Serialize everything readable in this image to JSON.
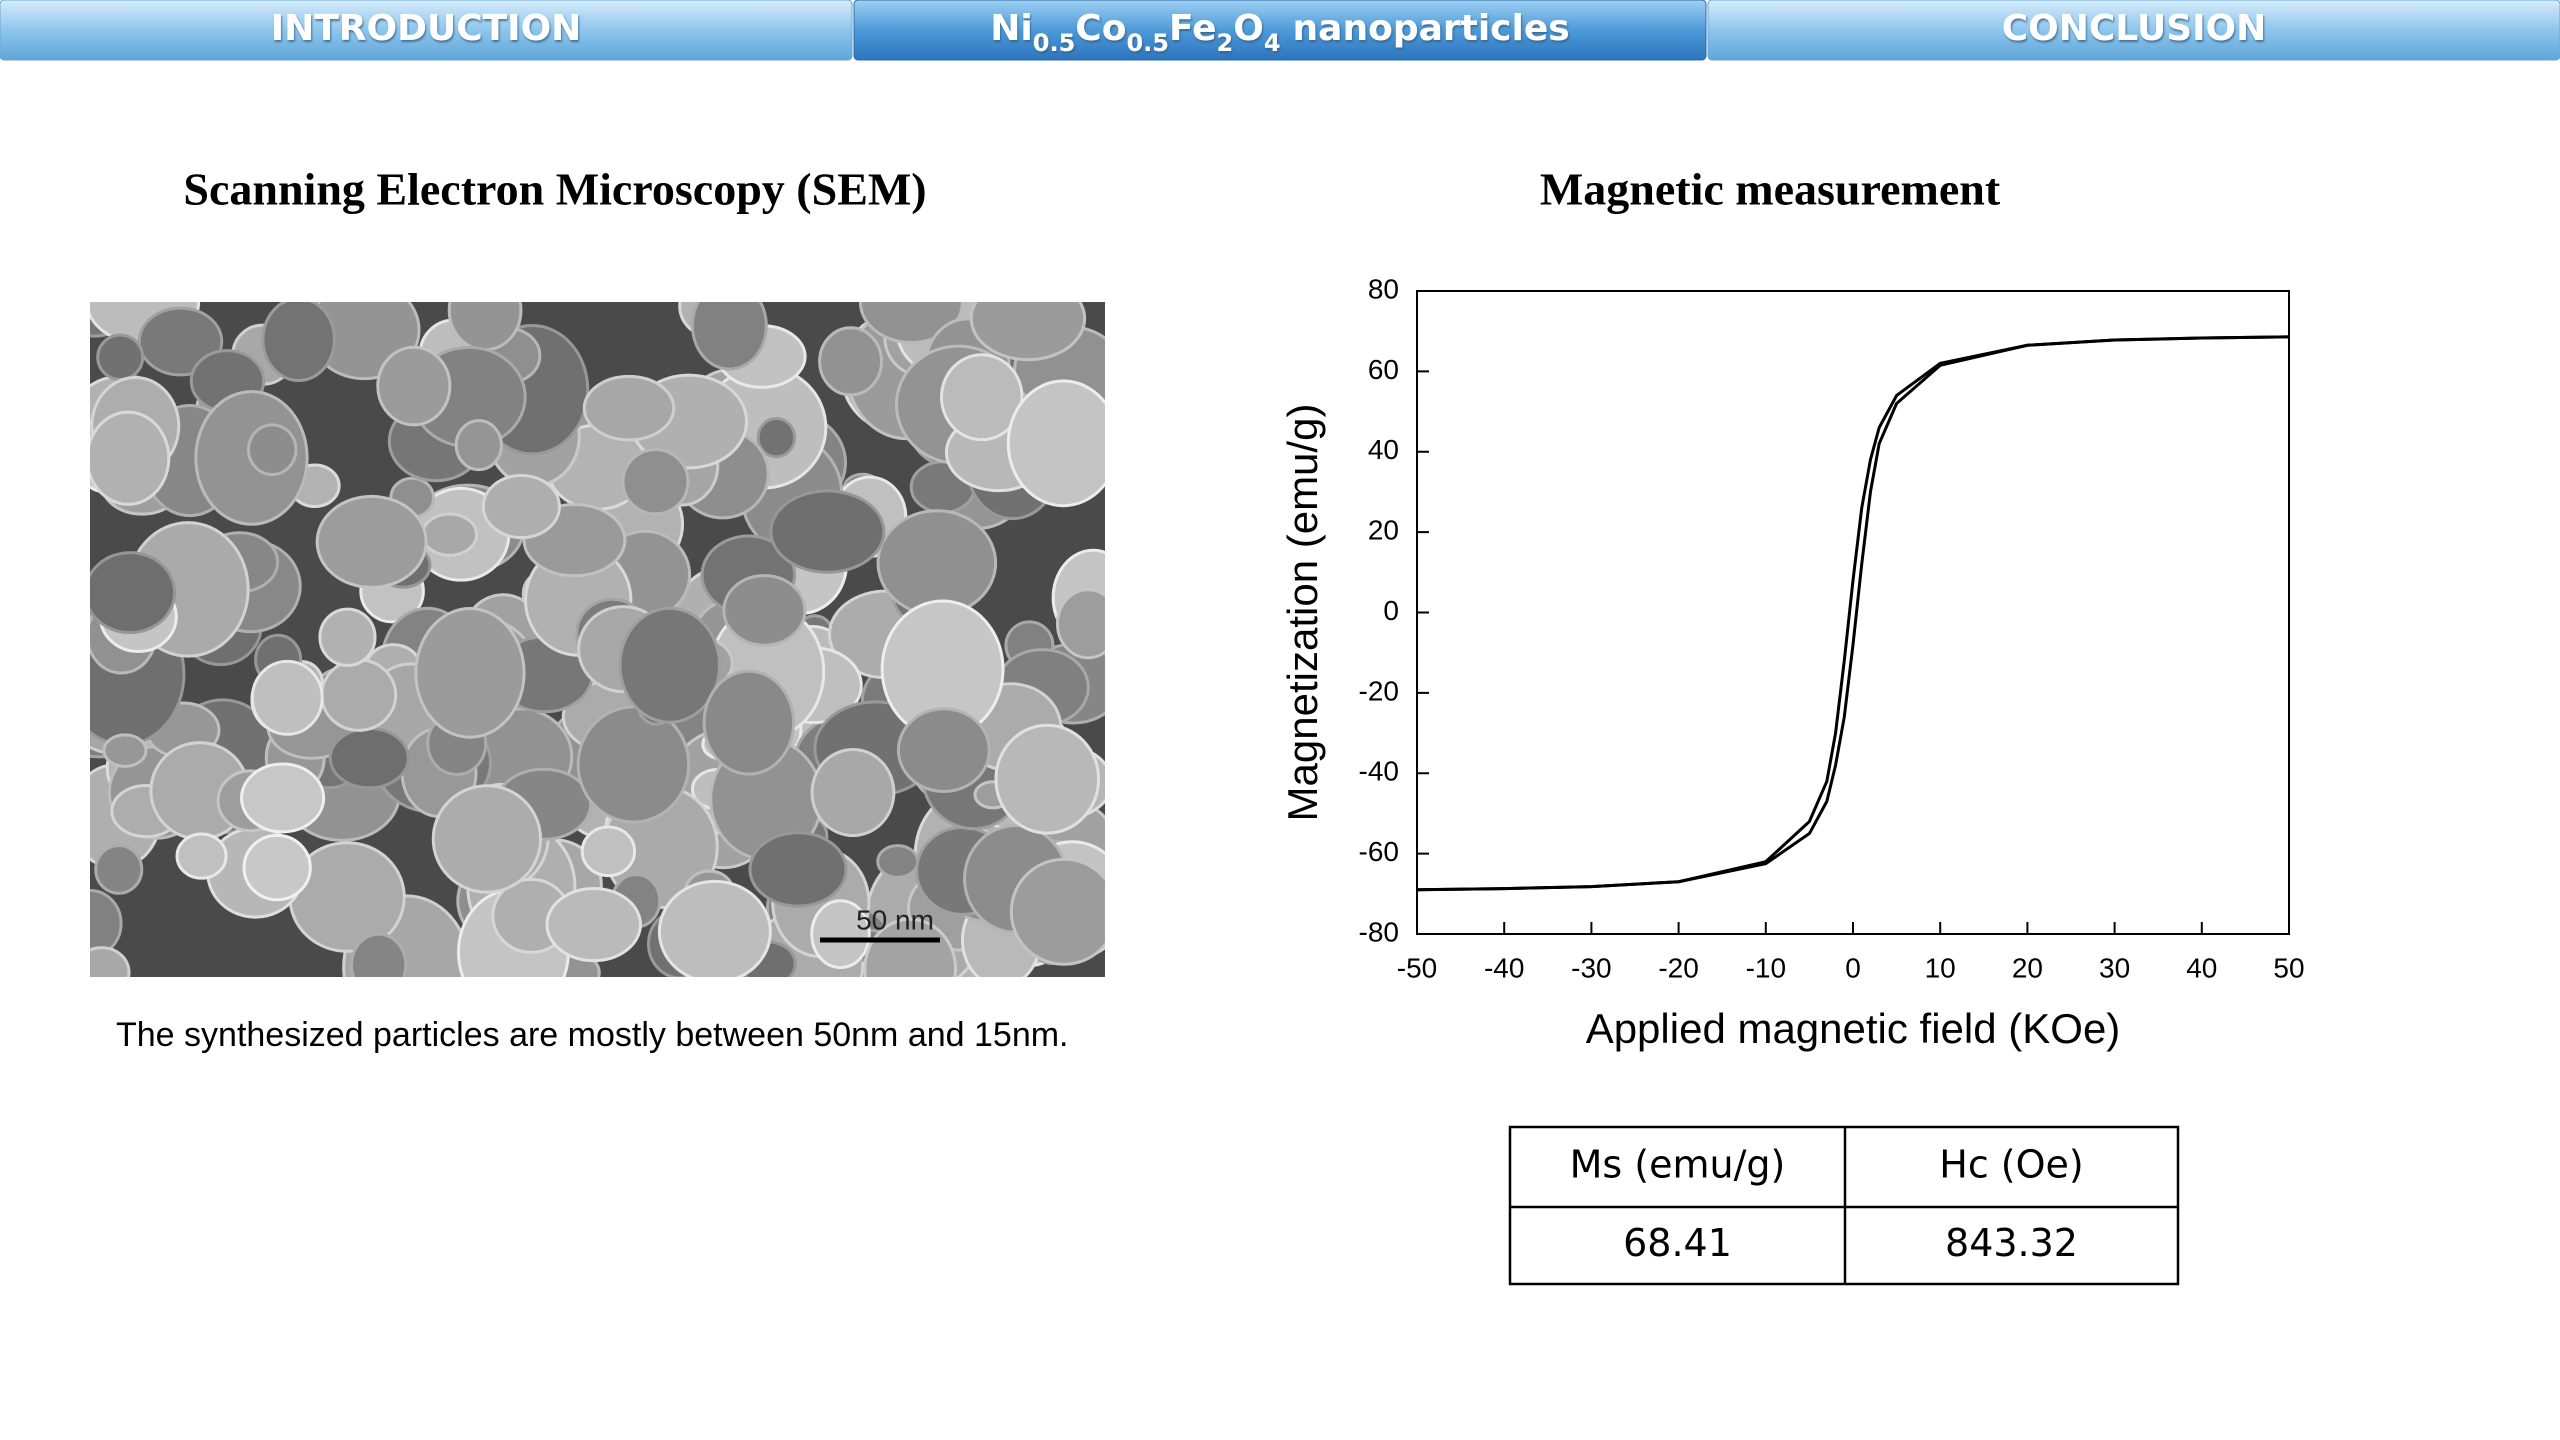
{
  "nav": {
    "tabs": [
      {
        "label": "INTRODUCTION"
      },
      {
        "formula": [
          {
            "base": "Ni",
            "sub": "0.5"
          },
          {
            "base": "Co",
            "sub": "0.5"
          },
          {
            "base": "Fe",
            "sub": "2"
          },
          {
            "base": "O",
            "sub": "4"
          }
        ],
        "label": "nanoparticles"
      },
      {
        "label": "CONCLUSION"
      }
    ]
  },
  "sem": {
    "title": "Scanning Electron Microscopy (SEM)",
    "scale_label": "50 nm",
    "caption": "The synthesized particles are mostly between 50nm and 15nm."
  },
  "magnetic": {
    "title": "Magnetic measurement",
    "table": {
      "header": [
        "Ms (emu/g)",
        "Hc (Oe)"
      ],
      "rows": [
        [
          "68.41",
          "843.32"
        ]
      ]
    }
  },
  "chart_data": {
    "type": "line",
    "x_label": "Applied magnetic field (KOe)",
    "y_label": "Magnetization (emu/g)",
    "x": [
      -50,
      -40,
      -30,
      -20,
      -10,
      -5,
      -3,
      -2,
      -1,
      0,
      1,
      2,
      3,
      5,
      10,
      20,
      30,
      40,
      50
    ],
    "series": [
      {
        "color": "#000000",
        "values": [
          -69,
          -68.7,
          -68.2,
          -67,
          -62,
          -52,
          -42,
          -30,
          -12,
          8,
          26,
          38,
          46,
          54,
          62,
          66.5,
          67.8,
          68.3,
          68.6
        ]
      },
      {
        "color": "#000000",
        "values": [
          -69,
          -68.7,
          -68.2,
          -67,
          -62.5,
          -55,
          -47,
          -38,
          -26,
          -8,
          12,
          30,
          42,
          52,
          61.5,
          66.5,
          67.8,
          68.3,
          68.6
        ]
      }
    ],
    "xlim": [
      -50,
      50
    ],
    "xticks": [
      -50,
      -40,
      -30,
      -20,
      -10,
      0,
      10,
      20,
      30,
      40,
      50
    ],
    "ylim": [
      -80,
      80
    ],
    "yticks": [
      -80,
      -60,
      -40,
      -20,
      0,
      20,
      40,
      60,
      80
    ],
    "grid": false
  }
}
